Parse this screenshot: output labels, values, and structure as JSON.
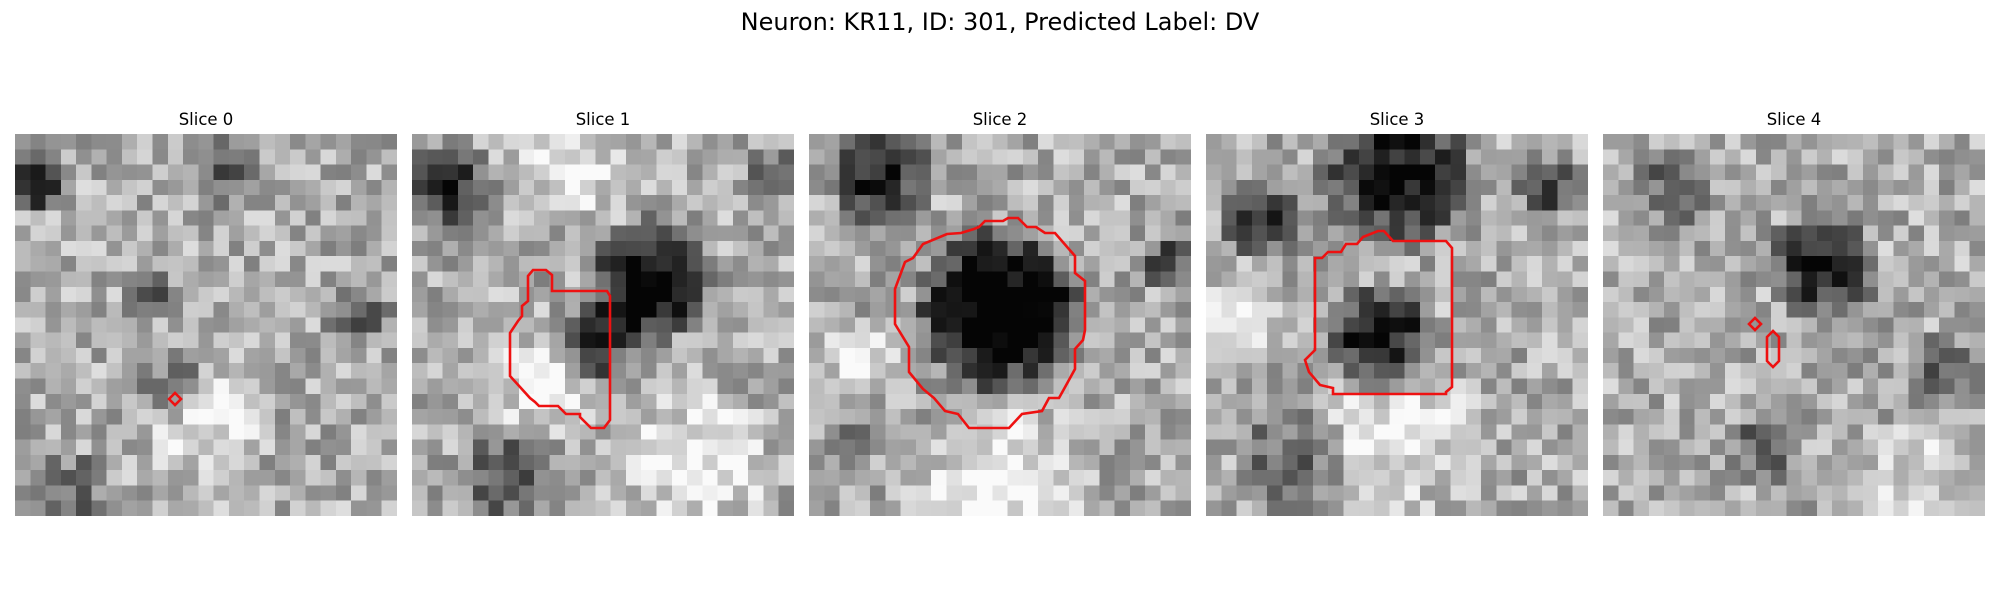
{
  "figure": {
    "title": "Neuron: KR11, ID: 301, Predicted Label: DV",
    "contour_color": "#ee1111",
    "colormap": "gray"
  },
  "slices": [
    {
      "title": "Slice 0"
    },
    {
      "title": "Slice 1"
    },
    {
      "title": "Slice 2"
    },
    {
      "title": "Slice 3"
    },
    {
      "title": "Slice 4"
    }
  ]
}
